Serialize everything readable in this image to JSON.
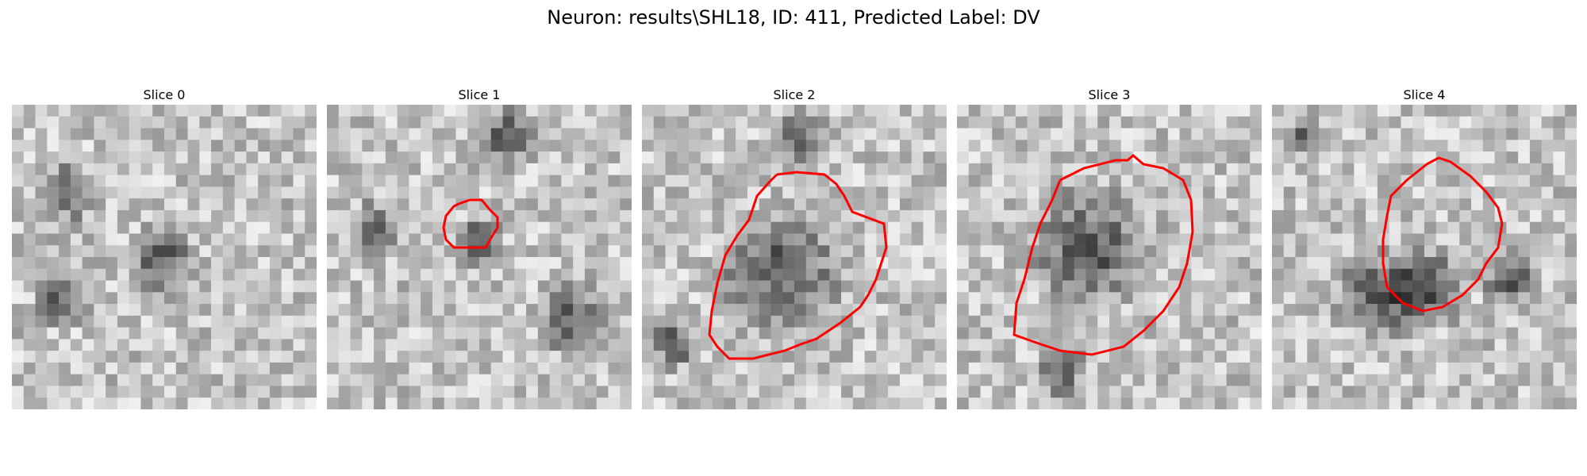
{
  "figure": {
    "title": "Neuron: results\\SHL18, ID: 411, Predicted Label: DV"
  },
  "slices": [
    {
      "title": "Slice 0",
      "has_contour": false
    },
    {
      "title": "Slice 1",
      "has_contour": true
    },
    {
      "title": "Slice 2",
      "has_contour": true
    },
    {
      "title": "Slice 3",
      "has_contour": true
    },
    {
      "title": "Slice 4",
      "has_contour": true
    }
  ],
  "colors": {
    "contour": "#ff0000",
    "background": "#ffffff"
  }
}
